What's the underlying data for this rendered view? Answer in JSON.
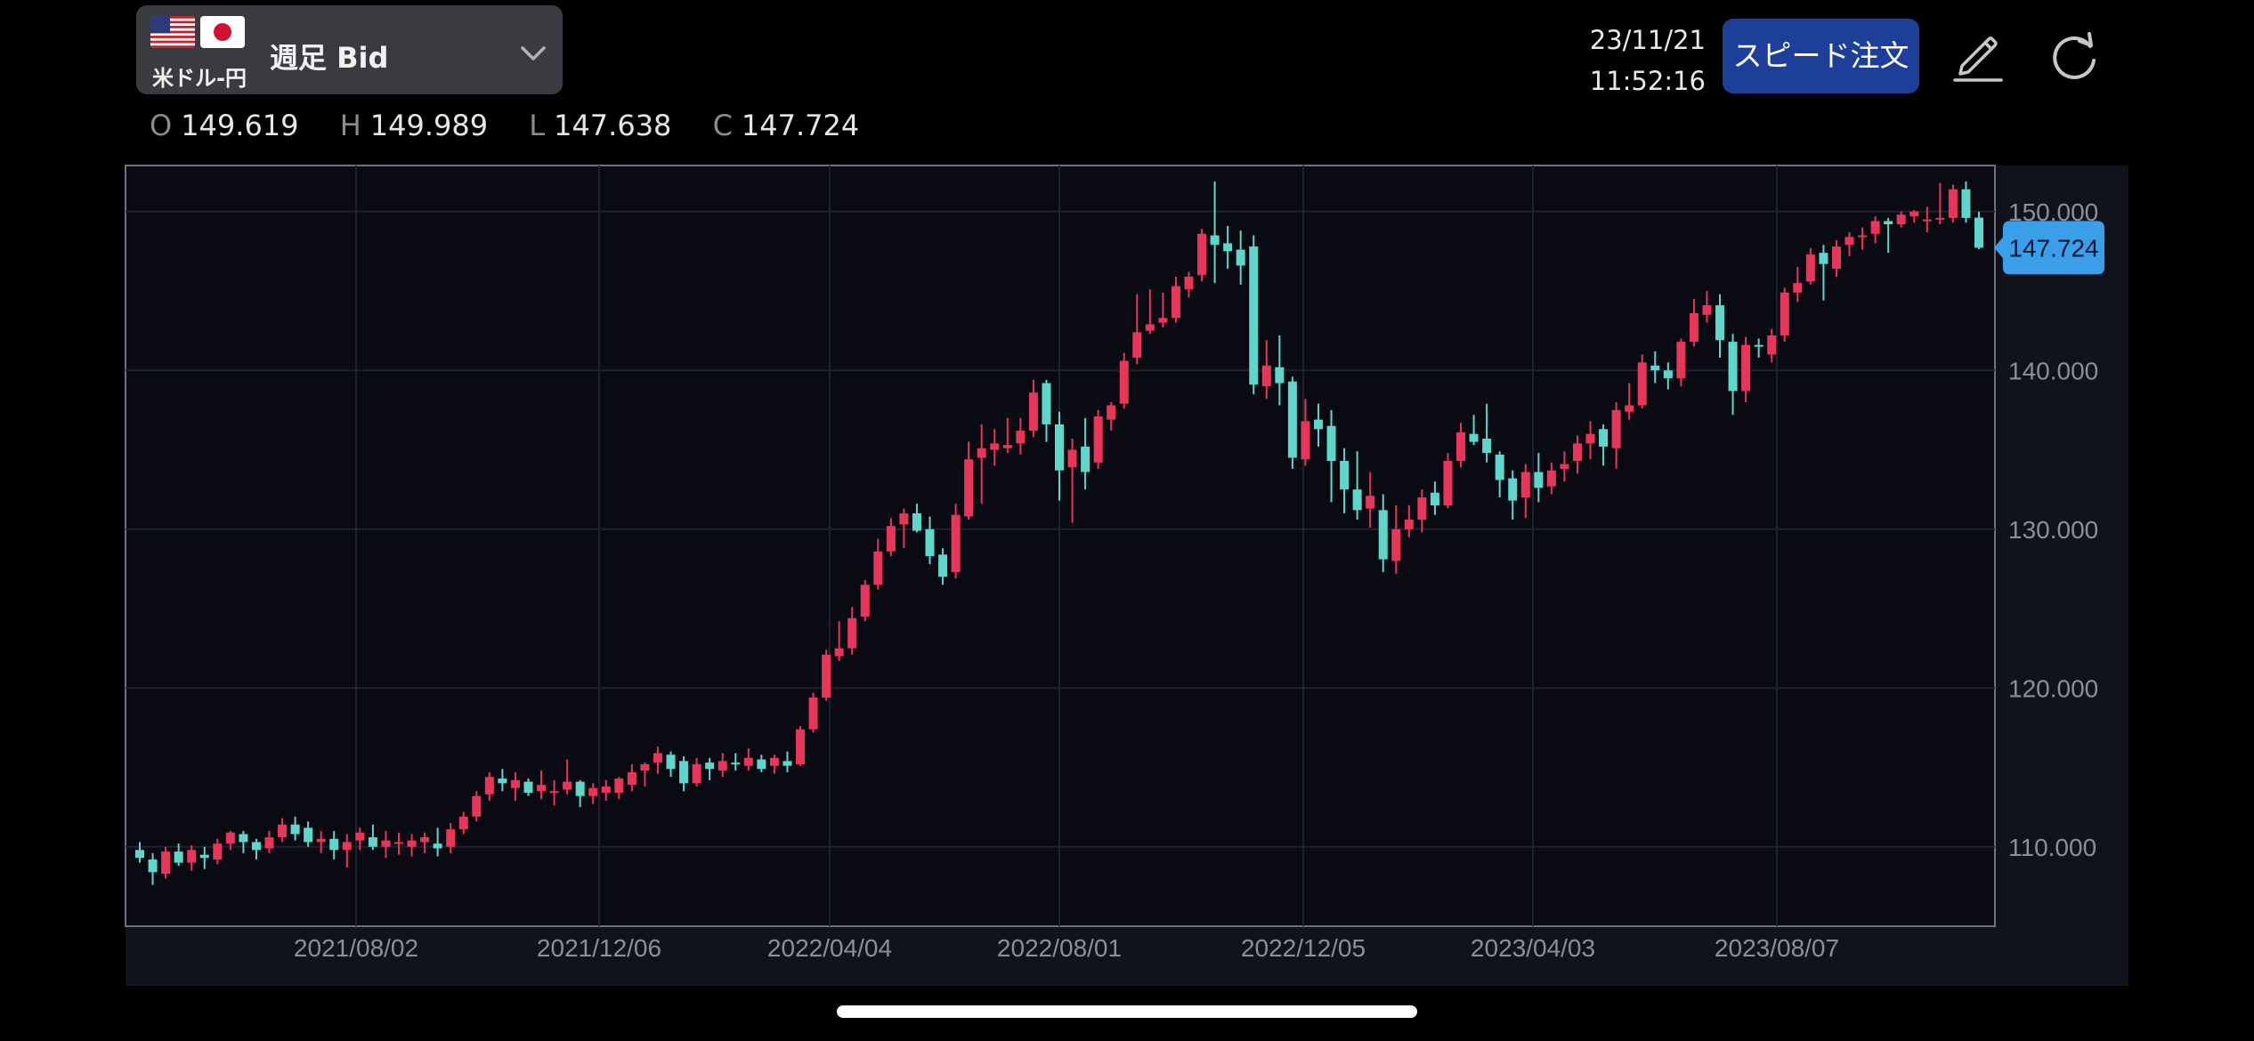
{
  "header": {
    "pair_label": "米ドル-円",
    "period_label": "週足  Bid",
    "date": "23/11/21",
    "time": "11:52:16",
    "speed_order_label": "スピード注文"
  },
  "ohlc": {
    "o_label": "O",
    "o_value": "149.619",
    "h_label": "H",
    "h_value": "149.989",
    "l_label": "L",
    "l_value": "147.638",
    "c_label": "C",
    "c_value": "147.724"
  },
  "colors": {
    "up": "#e8365a",
    "down": "#5fd6cc",
    "background": "#0a0b12",
    "accent": "#1d3f99",
    "price_tag": "#3a9ee8"
  },
  "chart_data": {
    "type": "candlestick",
    "title": "",
    "xlabel": "",
    "ylabel": "",
    "ylim": [
      105.0,
      152.9
    ],
    "y_ticks": [
      "150.000",
      "140.000",
      "130.000",
      "120.000",
      "110.000"
    ],
    "x_ticks": [
      "2021/08/02",
      "2021/12/06",
      "2022/04/04",
      "2022/08/01",
      "2022/12/05",
      "2023/04/03",
      "2023/08/07"
    ],
    "grid": true,
    "current_price": "147.724",
    "series": [
      [
        109.8,
        110.3,
        109.0,
        109.3
      ],
      [
        109.2,
        109.6,
        107.6,
        108.4
      ],
      [
        108.3,
        110.0,
        108.0,
        109.7
      ],
      [
        109.7,
        110.2,
        108.8,
        109.0
      ],
      [
        109.0,
        110.1,
        108.5,
        109.8
      ],
      [
        109.5,
        110.0,
        108.6,
        109.3
      ],
      [
        109.2,
        110.5,
        108.9,
        110.2
      ],
      [
        110.2,
        111.0,
        109.8,
        110.9
      ],
      [
        110.8,
        111.0,
        109.6,
        110.3
      ],
      [
        110.3,
        110.5,
        109.2,
        109.8
      ],
      [
        109.9,
        111.0,
        109.6,
        110.6
      ],
      [
        110.6,
        111.8,
        110.3,
        111.4
      ],
      [
        111.4,
        111.9,
        110.4,
        110.8
      ],
      [
        111.2,
        111.6,
        110.0,
        110.3
      ],
      [
        110.3,
        111.0,
        109.6,
        110.5
      ],
      [
        110.5,
        111.0,
        109.2,
        109.8
      ],
      [
        109.8,
        110.8,
        108.7,
        110.3
      ],
      [
        110.4,
        111.2,
        109.8,
        110.9
      ],
      [
        110.6,
        111.4,
        109.8,
        110.0
      ],
      [
        110.0,
        111.0,
        109.3,
        110.4
      ],
      [
        110.2,
        110.9,
        109.5,
        110.3
      ],
      [
        110.0,
        110.8,
        109.4,
        110.4
      ],
      [
        110.3,
        110.9,
        109.6,
        110.6
      ],
      [
        110.2,
        111.2,
        109.4,
        109.9
      ],
      [
        110.0,
        111.5,
        109.6,
        111.1
      ],
      [
        111.1,
        112.2,
        110.8,
        111.9
      ],
      [
        111.9,
        113.5,
        111.6,
        113.2
      ],
      [
        113.3,
        114.7,
        112.9,
        114.4
      ],
      [
        114.3,
        114.9,
        113.5,
        114.0
      ],
      [
        113.7,
        114.7,
        112.9,
        114.2
      ],
      [
        114.1,
        114.3,
        113.2,
        113.4
      ],
      [
        113.5,
        114.8,
        113.0,
        113.9
      ],
      [
        113.4,
        114.2,
        112.6,
        113.5
      ],
      [
        113.6,
        115.5,
        113.3,
        114.1
      ],
      [
        114.1,
        114.2,
        112.5,
        113.2
      ],
      [
        113.2,
        114.0,
        112.7,
        113.7
      ],
      [
        113.4,
        114.2,
        112.9,
        113.8
      ],
      [
        113.4,
        114.4,
        113.0,
        114.3
      ],
      [
        113.9,
        115.2,
        113.5,
        114.7
      ],
      [
        114.8,
        115.3,
        113.8,
        115.2
      ],
      [
        115.3,
        116.3,
        114.6,
        115.9
      ],
      [
        115.8,
        116.0,
        114.4,
        114.9
      ],
      [
        115.4,
        115.7,
        113.5,
        114.0
      ],
      [
        114.0,
        115.6,
        113.8,
        115.2
      ],
      [
        115.3,
        115.6,
        114.2,
        114.9
      ],
      [
        114.8,
        115.9,
        114.4,
        115.4
      ],
      [
        115.3,
        115.9,
        114.8,
        115.2
      ],
      [
        115.1,
        116.2,
        114.8,
        115.6
      ],
      [
        115.5,
        115.8,
        114.7,
        114.9
      ],
      [
        115.1,
        115.8,
        114.6,
        115.6
      ],
      [
        115.4,
        116.0,
        114.7,
        115.1
      ],
      [
        115.2,
        117.6,
        115.1,
        117.4
      ],
      [
        117.4,
        119.7,
        117.2,
        119.4
      ],
      [
        119.4,
        122.4,
        119.2,
        122.1
      ],
      [
        122.0,
        124.2,
        121.7,
        122.5
      ],
      [
        122.5,
        125.1,
        122.1,
        124.4
      ],
      [
        124.5,
        126.8,
        124.2,
        126.5
      ],
      [
        126.5,
        129.4,
        126.2,
        128.6
      ],
      [
        128.6,
        130.7,
        128.3,
        130.2
      ],
      [
        130.3,
        131.3,
        128.8,
        131.0
      ],
      [
        131.0,
        131.6,
        129.8,
        129.9
      ],
      [
        130.0,
        130.8,
        127.8,
        128.3
      ],
      [
        128.4,
        128.8,
        126.5,
        127.0
      ],
      [
        127.3,
        131.6,
        126.9,
        130.9
      ],
      [
        130.8,
        135.5,
        130.6,
        134.4
      ],
      [
        134.5,
        136.6,
        131.6,
        135.1
      ],
      [
        135.0,
        136.3,
        134.0,
        135.4
      ],
      [
        135.1,
        137.0,
        134.8,
        135.3
      ],
      [
        135.4,
        137.0,
        134.7,
        136.2
      ],
      [
        136.2,
        139.4,
        135.8,
        138.6
      ],
      [
        139.2,
        139.4,
        135.5,
        136.6
      ],
      [
        136.6,
        137.4,
        131.8,
        133.7
      ],
      [
        133.9,
        135.7,
        130.4,
        135.0
      ],
      [
        135.2,
        137.0,
        132.5,
        133.6
      ],
      [
        134.2,
        137.5,
        133.8,
        137.1
      ],
      [
        136.9,
        138.0,
        136.2,
        137.8
      ],
      [
        137.9,
        141.1,
        137.6,
        140.6
      ],
      [
        140.8,
        144.8,
        140.4,
        142.4
      ],
      [
        142.5,
        145.1,
        142.3,
        142.9
      ],
      [
        143.0,
        144.9,
        142.7,
        143.3
      ],
      [
        143.3,
        145.9,
        143.0,
        145.3
      ],
      [
        145.1,
        146.2,
        144.6,
        145.9
      ],
      [
        146.0,
        148.9,
        145.6,
        148.6
      ],
      [
        148.5,
        151.9,
        145.5,
        147.9
      ],
      [
        148.0,
        149.1,
        146.4,
        147.5
      ],
      [
        147.6,
        148.8,
        145.4,
        146.6
      ],
      [
        147.8,
        148.5,
        138.5,
        139.1
      ],
      [
        139.0,
        141.9,
        138.2,
        140.3
      ],
      [
        140.2,
        142.2,
        137.8,
        139.2
      ],
      [
        139.3,
        139.6,
        133.8,
        134.5
      ],
      [
        134.4,
        138.2,
        134.0,
        136.8
      ],
      [
        136.9,
        137.9,
        135.2,
        136.3
      ],
      [
        136.5,
        137.5,
        131.7,
        134.3
      ],
      [
        134.3,
        135.1,
        131.0,
        132.5
      ],
      [
        132.5,
        134.9,
        130.6,
        131.2
      ],
      [
        131.3,
        133.6,
        130.1,
        132.1
      ],
      [
        131.2,
        132.2,
        127.3,
        128.1
      ],
      [
        128.0,
        131.5,
        127.2,
        130.0
      ],
      [
        130.0,
        131.5,
        129.5,
        130.6
      ],
      [
        130.6,
        132.5,
        129.8,
        132.0
      ],
      [
        132.3,
        133.0,
        130.9,
        131.5
      ],
      [
        131.5,
        134.8,
        131.3,
        134.3
      ],
      [
        134.3,
        136.7,
        133.9,
        136.1
      ],
      [
        136.0,
        137.2,
        135.3,
        135.5
      ],
      [
        135.7,
        137.9,
        134.2,
        134.8
      ],
      [
        134.7,
        134.9,
        132.0,
        133.1
      ],
      [
        133.2,
        133.7,
        130.6,
        131.8
      ],
      [
        132.0,
        134.1,
        130.7,
        133.6
      ],
      [
        133.6,
        134.8,
        131.7,
        132.6
      ],
      [
        132.7,
        134.2,
        132.2,
        133.7
      ],
      [
        133.8,
        134.9,
        133.0,
        134.1
      ],
      [
        134.3,
        135.9,
        133.5,
        135.4
      ],
      [
        135.4,
        136.8,
        134.4,
        136.0
      ],
      [
        136.3,
        136.6,
        134.0,
        135.2
      ],
      [
        135.1,
        138.0,
        133.8,
        137.5
      ],
      [
        137.4,
        139.2,
        136.9,
        137.8
      ],
      [
        137.8,
        141.0,
        137.6,
        140.5
      ],
      [
        140.3,
        141.2,
        139.2,
        140.0
      ],
      [
        140.0,
        140.5,
        138.8,
        139.5
      ],
      [
        139.5,
        142.0,
        139.0,
        141.8
      ],
      [
        141.8,
        144.5,
        141.5,
        143.6
      ],
      [
        143.5,
        145.0,
        143.0,
        144.1
      ],
      [
        144.1,
        144.8,
        140.8,
        141.9
      ],
      [
        141.8,
        142.3,
        137.2,
        138.7
      ],
      [
        138.7,
        142.1,
        138.0,
        141.6
      ],
      [
        141.6,
        142.0,
        140.8,
        141.5
      ],
      [
        141.0,
        142.6,
        140.5,
        142.2
      ],
      [
        142.2,
        145.2,
        141.8,
        144.9
      ],
      [
        144.9,
        146.5,
        144.3,
        145.5
      ],
      [
        145.6,
        147.7,
        145.4,
        147.3
      ],
      [
        147.4,
        147.9,
        144.4,
        146.7
      ],
      [
        146.4,
        148.2,
        145.9,
        147.8
      ],
      [
        147.9,
        148.7,
        147.2,
        148.4
      ],
      [
        148.4,
        149.0,
        147.6,
        148.5
      ],
      [
        148.6,
        149.7,
        148.0,
        149.4
      ],
      [
        149.4,
        149.6,
        147.4,
        149.2
      ],
      [
        149.2,
        150.0,
        149.0,
        149.8
      ],
      [
        149.7,
        150.1,
        149.3,
        150.0
      ],
      [
        149.4,
        150.3,
        148.7,
        149.5
      ],
      [
        149.5,
        151.8,
        149.2,
        149.6
      ],
      [
        149.6,
        151.7,
        149.3,
        151.4
      ],
      [
        151.4,
        151.9,
        149.3,
        149.6
      ],
      [
        149.619,
        149.989,
        147.638,
        147.724
      ]
    ]
  }
}
